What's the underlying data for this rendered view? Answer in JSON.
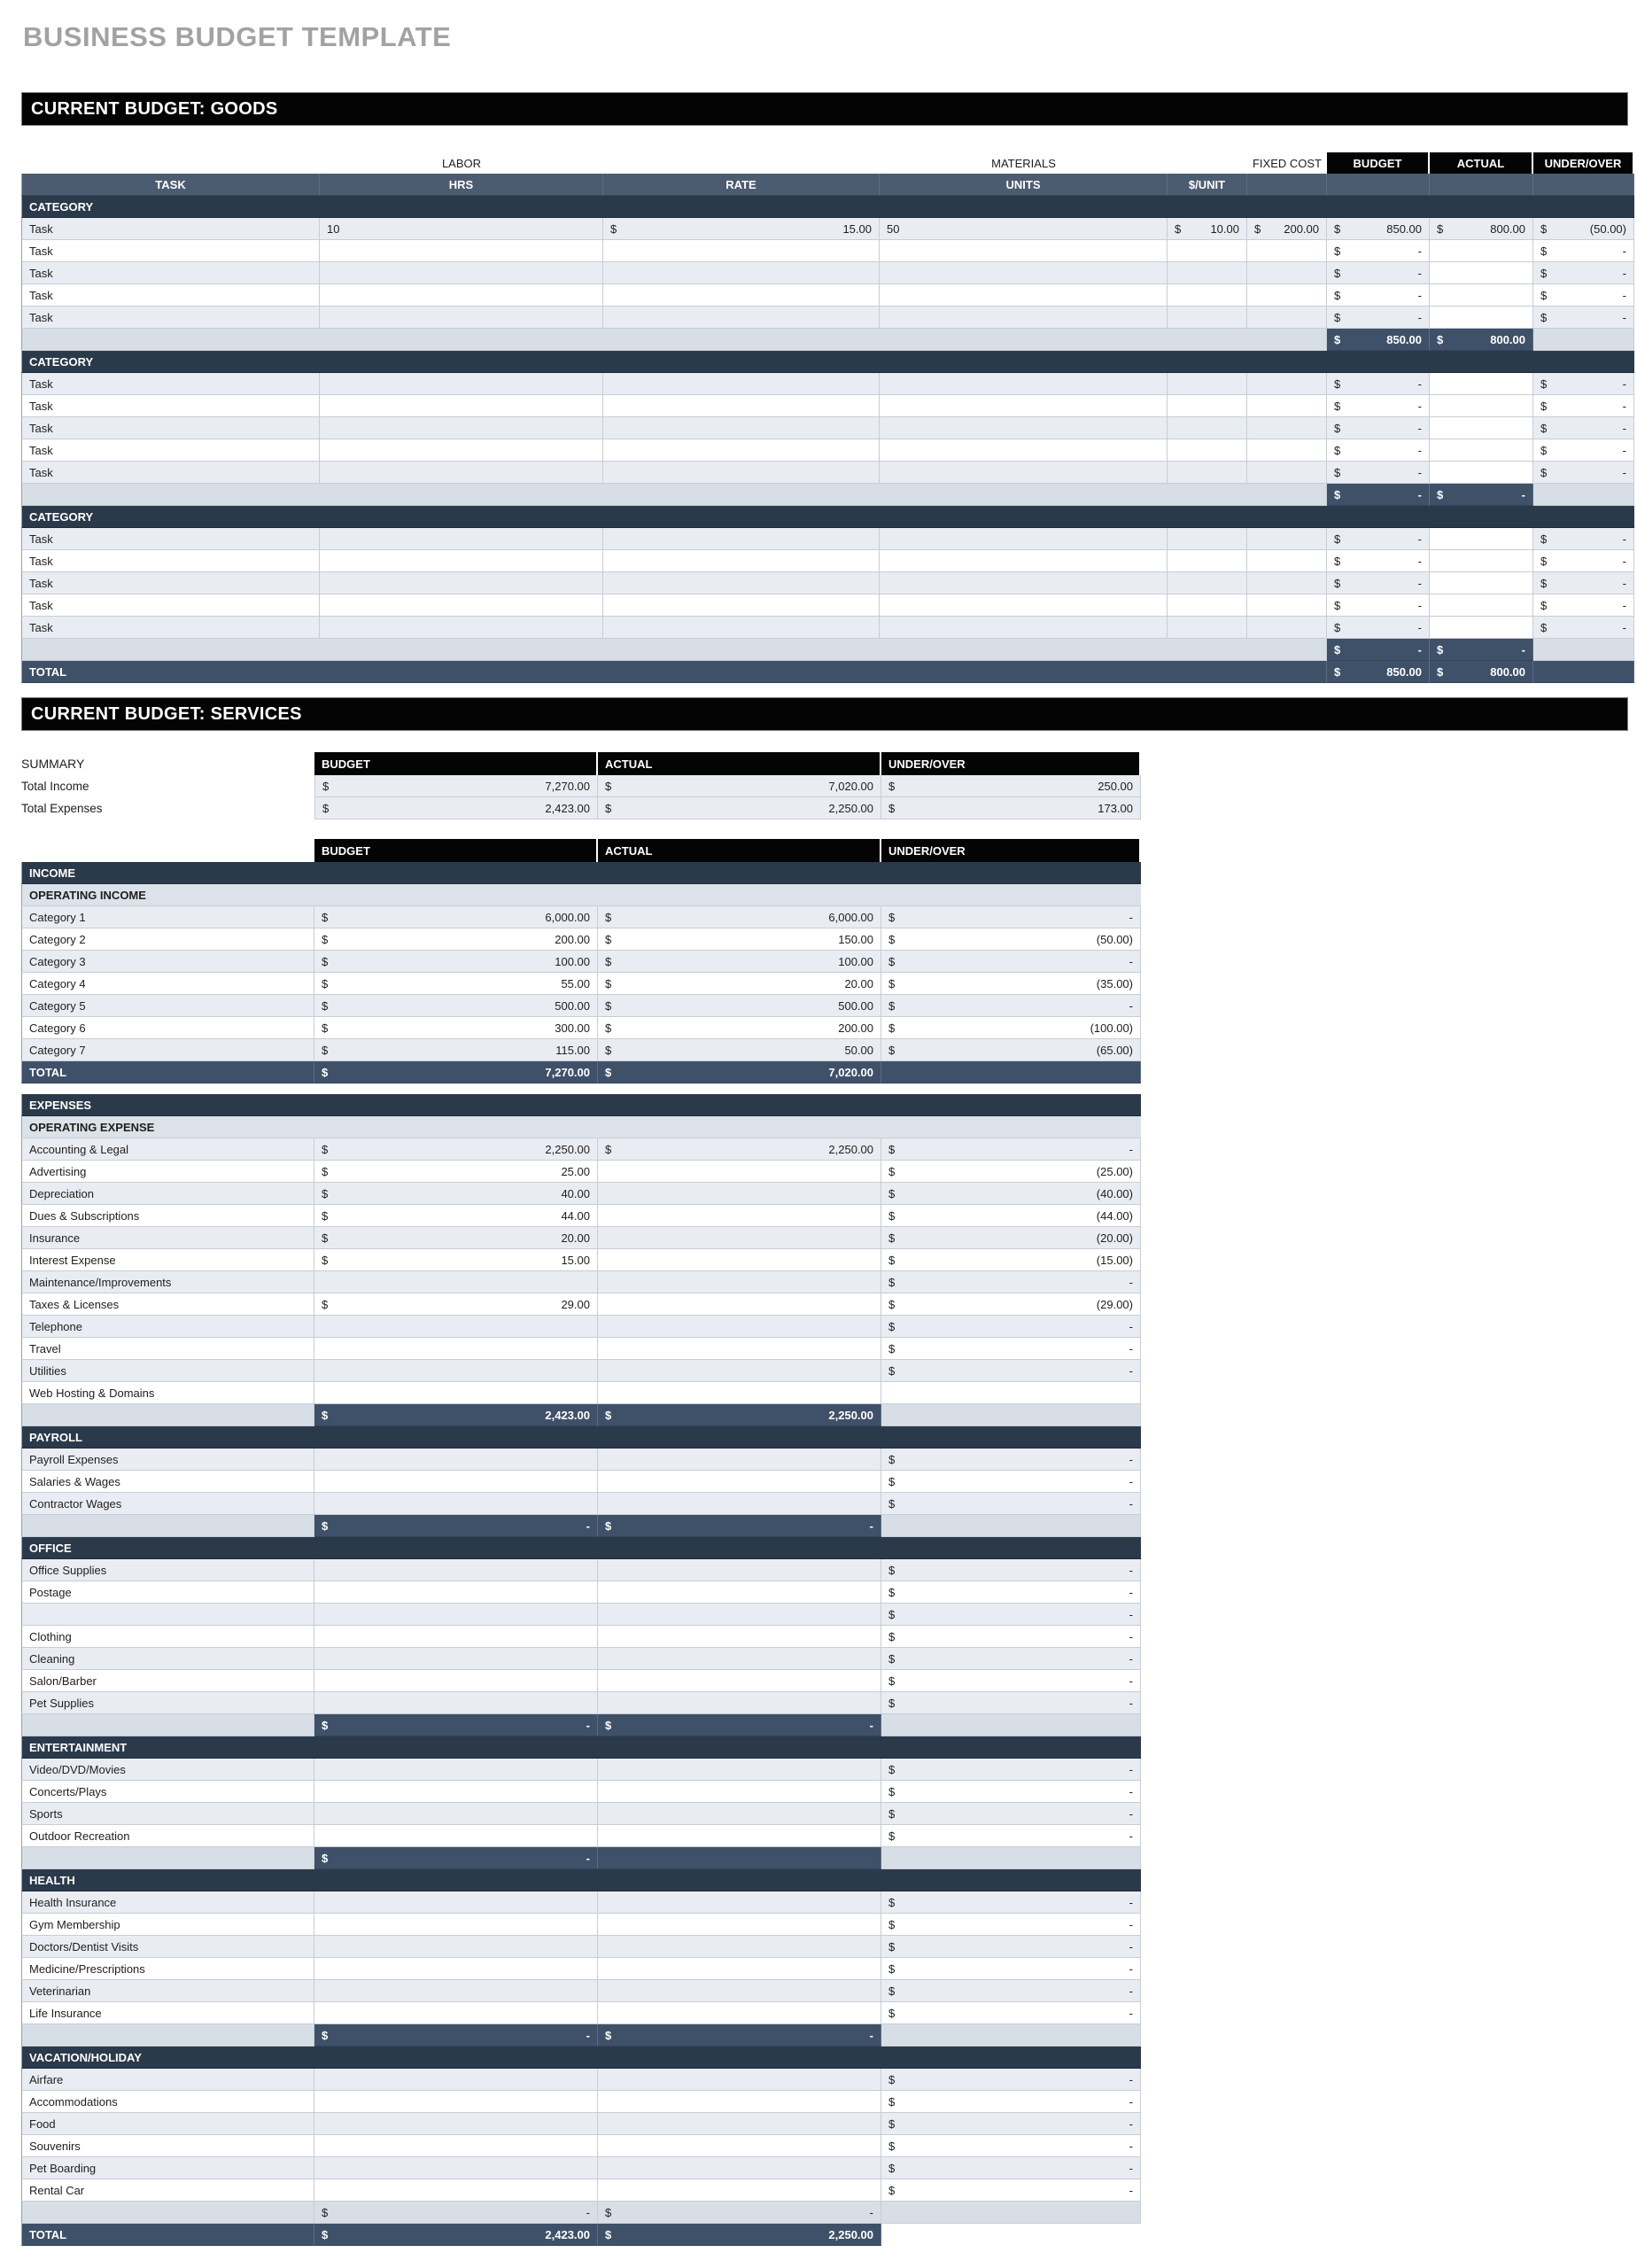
{
  "page_title": "BUSINESS BUDGET TEMPLATE",
  "colors": {
    "header_black": "#040404",
    "slate_header": "#4c5c70",
    "dark_bar": "#2b3a4b",
    "subtotal_bar": "#3f5168",
    "row_light": "#e9edf3",
    "row_gray": "#d8dee5",
    "title_gray": "#a2a2a2"
  },
  "goods": {
    "section_title": "CURRENT BUDGET: GOODS",
    "group_labels": {
      "labor": "LABOR",
      "materials": "MATERIALS",
      "fixed_cost": "FIXED COST"
    },
    "value_headers": [
      "BUDGET",
      "ACTUAL",
      "UNDER/OVER"
    ],
    "columns": [
      "TASK",
      "HRS",
      "RATE",
      "UNITS",
      "$/UNIT"
    ],
    "categories": [
      {
        "label": "CATEGORY",
        "tasks": [
          {
            "label": "Task",
            "hrs": "10",
            "rate": "15.00",
            "units": "50",
            "unit_cost": "10.00",
            "fixed": "200.00",
            "budget": "850.00",
            "actual": "800.00",
            "under_over": "(50.00)"
          },
          {
            "label": "Task",
            "budget": "-",
            "under_over": "-"
          },
          {
            "label": "Task",
            "budget": "-",
            "under_over": "-"
          },
          {
            "label": "Task",
            "budget": "-",
            "under_over": "-"
          },
          {
            "label": "Task",
            "budget": "-",
            "under_over": "-"
          }
        ],
        "subtotal": {
          "budget": "850.00",
          "actual": "800.00"
        }
      },
      {
        "label": "CATEGORY",
        "tasks": [
          {
            "label": "Task",
            "budget": "-",
            "under_over": "-"
          },
          {
            "label": "Task",
            "budget": "-",
            "under_over": "-"
          },
          {
            "label": "Task",
            "budget": "-",
            "under_over": "-"
          },
          {
            "label": "Task",
            "budget": "-",
            "under_over": "-"
          },
          {
            "label": "Task",
            "budget": "-",
            "under_over": "-"
          }
        ],
        "subtotal": {
          "budget": "-",
          "actual": "-"
        }
      },
      {
        "label": "CATEGORY",
        "tasks": [
          {
            "label": "Task",
            "budget": "-",
            "under_over": "-"
          },
          {
            "label": "Task",
            "budget": "-",
            "under_over": "-"
          },
          {
            "label": "Task",
            "budget": "-",
            "under_over": "-"
          },
          {
            "label": "Task",
            "budget": "-",
            "under_over": "-"
          },
          {
            "label": "Task",
            "budget": "-",
            "under_over": "-"
          }
        ],
        "subtotal": {
          "budget": "-",
          "actual": "-"
        }
      }
    ],
    "total": {
      "label": "TOTAL",
      "budget": "850.00",
      "actual": "800.00"
    }
  },
  "services": {
    "section_title": "CURRENT BUDGET: SERVICES",
    "summary": {
      "label": "SUMMARY",
      "headers": [
        "BUDGET",
        "ACTUAL",
        "UNDER/OVER"
      ],
      "rows": [
        {
          "label": "Total Income",
          "budget": "7,270.00",
          "actual": "7,020.00",
          "under_over": "250.00"
        },
        {
          "label": "Total Expenses",
          "budget": "2,423.00",
          "actual": "2,250.00",
          "under_over": "173.00"
        }
      ]
    },
    "table": {
      "headers": [
        "BUDGET",
        "ACTUAL",
        "UNDER/OVER"
      ],
      "sections": [
        {
          "bar": "INCOME",
          "subbar": "OPERATING INCOME",
          "gap_before": false,
          "rows": [
            {
              "label": "Category 1",
              "b": "6,000.00",
              "a": "6,000.00",
              "u": "-"
            },
            {
              "label": "Category 2",
              "b": "200.00",
              "a": "150.00",
              "u": "(50.00)"
            },
            {
              "label": "Category 3",
              "b": "100.00",
              "a": "100.00",
              "u": "-"
            },
            {
              "label": "Category 4",
              "b": "55.00",
              "a": "20.00",
              "u": "(35.00)"
            },
            {
              "label": "Category 5",
              "b": "500.00",
              "a": "500.00",
              "u": "-"
            },
            {
              "label": "Category 6",
              "b": "300.00",
              "a": "200.00",
              "u": "(100.00)"
            },
            {
              "label": "Category 7",
              "b": "115.00",
              "a": "50.00",
              "u": "(65.00)"
            }
          ],
          "footer": {
            "type": "total",
            "label": "TOTAL",
            "b": "7,270.00",
            "a": "7,020.00",
            "uo_style": "dark"
          }
        },
        {
          "bar": "EXPENSES",
          "subbar": "OPERATING EXPENSE",
          "gap_before": true,
          "rows": [
            {
              "label": "Accounting & Legal",
              "b": "2,250.00",
              "a": "2,250.00",
              "u": "-"
            },
            {
              "label": "Advertising",
              "b": "25.00",
              "u": "(25.00)"
            },
            {
              "label": "Depreciation",
              "b": "40.00",
              "u": "(40.00)"
            },
            {
              "label": "Dues & Subscriptions",
              "b": "44.00",
              "u": "(44.00)"
            },
            {
              "label": "Insurance",
              "b": "20.00",
              "u": "(20.00)"
            },
            {
              "label": "Interest Expense",
              "b": "15.00",
              "u": "(15.00)"
            },
            {
              "label": "Maintenance/Improvements",
              "u": "-"
            },
            {
              "label": "Taxes & Licenses",
              "b": "29.00",
              "u": "(29.00)"
            },
            {
              "label": "Telephone",
              "u": "-"
            },
            {
              "label": "Travel",
              "u": "-"
            },
            {
              "label": "Utilities",
              "u": "-"
            },
            {
              "label": "Web Hosting & Domains"
            }
          ],
          "footer": {
            "type": "subtotal",
            "b": "2,423.00",
            "a": "2,250.00"
          }
        },
        {
          "bar": "PAYROLL",
          "gap_before": false,
          "rows": [
            {
              "label": "Payroll Expenses",
              "u": "-"
            },
            {
              "label": "Salaries & Wages",
              "u": "-"
            },
            {
              "label": "Contractor Wages",
              "u": "-"
            }
          ],
          "footer": {
            "type": "subtotal",
            "b": "-",
            "a": "-"
          }
        },
        {
          "bar": "OFFICE",
          "gap_before": false,
          "rows": [
            {
              "label": "Office Supplies",
              "u": "-"
            },
            {
              "label": "Postage",
              "u": "-"
            },
            {
              "label": "",
              "u": "-"
            },
            {
              "label": "Clothing",
              "u": "-"
            },
            {
              "label": "Cleaning",
              "u": "-"
            },
            {
              "label": "Salon/Barber",
              "u": "-"
            },
            {
              "label": "Pet Supplies",
              "u": "-"
            }
          ],
          "footer": {
            "type": "subtotal",
            "b": "-",
            "a": "-"
          }
        },
        {
          "bar": "ENTERTAINMENT",
          "gap_before": false,
          "rows": [
            {
              "label": "Video/DVD/Movies",
              "u": "-"
            },
            {
              "label": "Concerts/Plays",
              "u": "-"
            },
            {
              "label": "Sports",
              "u": "-"
            },
            {
              "label": "Outdoor Recreation",
              "u": "-"
            }
          ],
          "footer": {
            "type": "subtotal",
            "b": "-"
          }
        },
        {
          "bar": "HEALTH",
          "gap_before": false,
          "rows": [
            {
              "label": "Health Insurance",
              "u": "-"
            },
            {
              "label": "Gym Membership",
              "u": "-"
            },
            {
              "label": "Doctors/Dentist Visits",
              "u": "-"
            },
            {
              "label": "Medicine/Prescriptions",
              "u": "-"
            },
            {
              "label": "Veterinarian",
              "u": "-"
            },
            {
              "label": "Life Insurance",
              "u": "-"
            }
          ],
          "footer": {
            "type": "subtotal",
            "b": "-",
            "a": "-"
          }
        },
        {
          "bar": "VACATION/HOLIDAY",
          "gap_before": false,
          "rows": [
            {
              "label": "Airfare",
              "u": "-"
            },
            {
              "label": "Accommodations",
              "u": "-"
            },
            {
              "label": "Food",
              "u": "-"
            },
            {
              "label": "Souvenirs",
              "u": "-"
            },
            {
              "label": "Pet Boarding",
              "u": "-"
            },
            {
              "label": "Rental Car",
              "u": "-"
            }
          ],
          "footer": {
            "type": "subtotal-light",
            "b": "-",
            "a": "-"
          },
          "grand_total": {
            "label": "TOTAL",
            "b": "2,423.00",
            "a": "2,250.00"
          }
        }
      ]
    }
  }
}
